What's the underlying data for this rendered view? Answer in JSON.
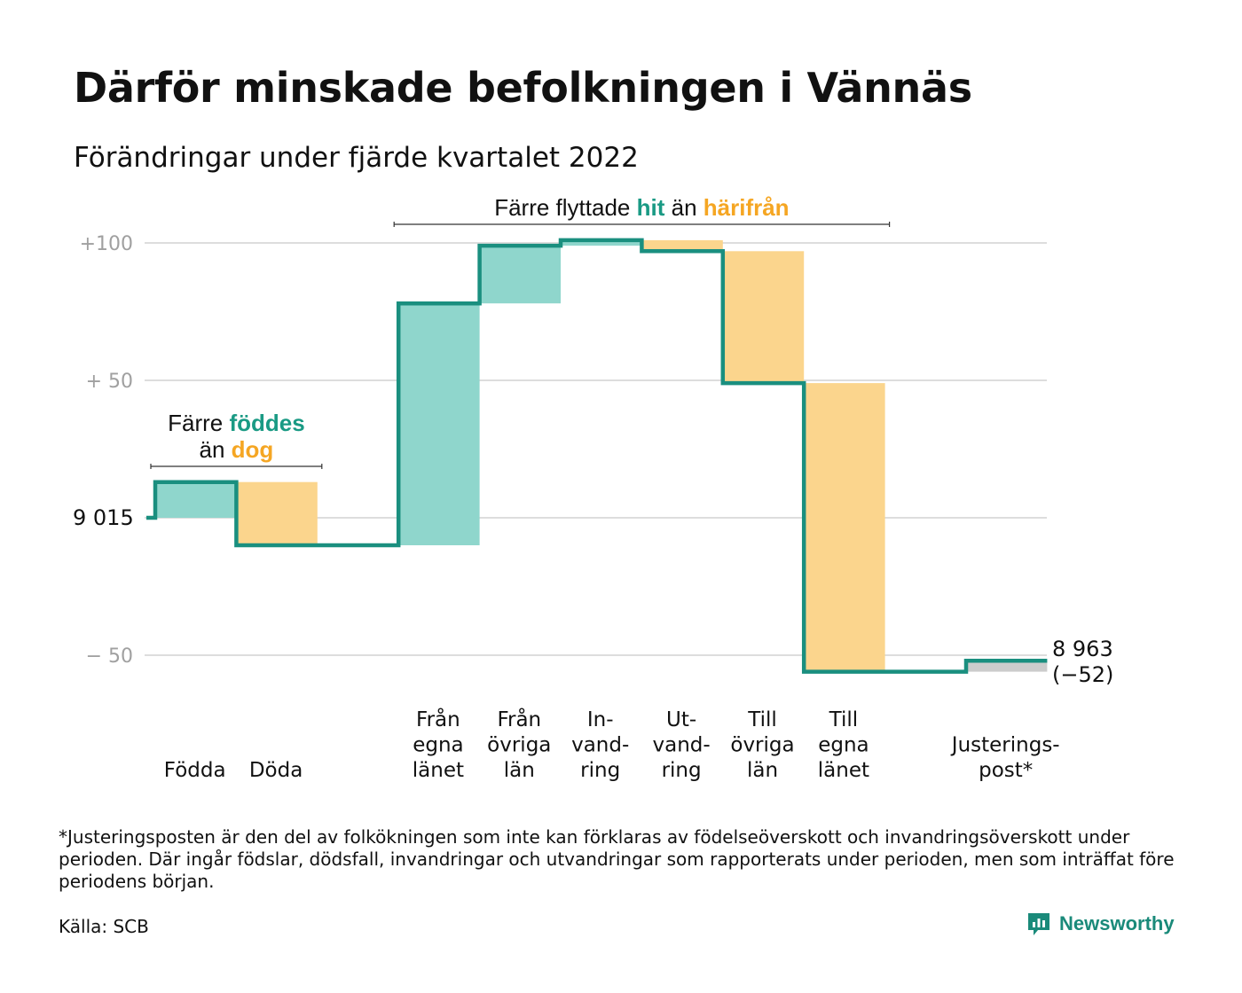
{
  "title": "Därför minskade befolkningen i Vännäs",
  "subtitle": "Förändringar under fjärde kvartalet 2022",
  "colors": {
    "positive": "#8fd6cc",
    "negative": "#fbd58d",
    "adjustment": "#cccccc",
    "line": "#1a8f7f",
    "accent_green": "#1a9a84",
    "accent_orange": "#f5a623",
    "grid": "#dddddd",
    "tick_text": "#a0a0a0"
  },
  "chart_data": {
    "type": "waterfall",
    "start_value": 9015,
    "start_label": "9 015",
    "end_label_value": "8 963",
    "end_label_change": "(−52)",
    "y_ticks": [
      {
        "value": 100,
        "label": "+100"
      },
      {
        "value": 50,
        "label": "+ 50"
      },
      {
        "value": 0,
        "label": ""
      },
      {
        "value": -50,
        "label": "− 50"
      }
    ],
    "ylim": [
      -60,
      110
    ],
    "categories": [
      {
        "label_lines": [
          "Födda"
        ],
        "change": 13,
        "kind": "positive"
      },
      {
        "label_lines": [
          "Döda"
        ],
        "change": -23,
        "kind": "negative"
      },
      {
        "label_lines": [],
        "change": 0,
        "kind": "none"
      },
      {
        "label_lines": [
          "Från",
          "egna",
          "länet"
        ],
        "change": 88,
        "kind": "positive"
      },
      {
        "label_lines": [
          "Från",
          "övriga",
          "län"
        ],
        "change": 21,
        "kind": "positive"
      },
      {
        "label_lines": [
          "In-",
          "vand-",
          "ring"
        ],
        "change": 2,
        "kind": "positive"
      },
      {
        "label_lines": [
          "Ut-",
          "vand-",
          "ring"
        ],
        "change": -4,
        "kind": "negative"
      },
      {
        "label_lines": [
          "Till",
          "övriga",
          "län"
        ],
        "change": -48,
        "kind": "negative"
      },
      {
        "label_lines": [
          "Till",
          "egna",
          "länet"
        ],
        "change": -105,
        "kind": "negative"
      },
      {
        "label_lines": [],
        "change": 0,
        "kind": "none"
      },
      {
        "label_lines": [
          "Justerings-",
          "post*"
        ],
        "change": 4,
        "kind": "adjustment"
      }
    ],
    "groups": [
      {
        "first": 0,
        "last": 1,
        "parts": [
          {
            "line": 0,
            "text": "Färre ",
            "style": "plain"
          },
          {
            "line": 0,
            "text": "föddes",
            "style": "green"
          },
          {
            "line": 1,
            "text": "än ",
            "style": "plain"
          },
          {
            "line": 1,
            "text": "dog",
            "style": "orange"
          }
        ]
      },
      {
        "first": 3,
        "last": 8,
        "parts": [
          {
            "line": 0,
            "text": "Färre flyttade ",
            "style": "plain"
          },
          {
            "line": 0,
            "text": "hit",
            "style": "green"
          },
          {
            "line": 0,
            "text": " än ",
            "style": "plain"
          },
          {
            "line": 0,
            "text": "härifrån",
            "style": "orange"
          }
        ]
      }
    ]
  },
  "footnote": "*Justeringsposten är den del av folkökningen som inte kan förklaras av födelseöverskott och invandringsöverskott under perioden. Där ingår födslar, dödsfall, invandringar och utvandringar som rapporterats under perioden, men som inträffat före periodens början.",
  "source": "Källa: SCB",
  "brand": {
    "name": "Newsworthy",
    "icon": "newsworthy-logo-icon"
  }
}
